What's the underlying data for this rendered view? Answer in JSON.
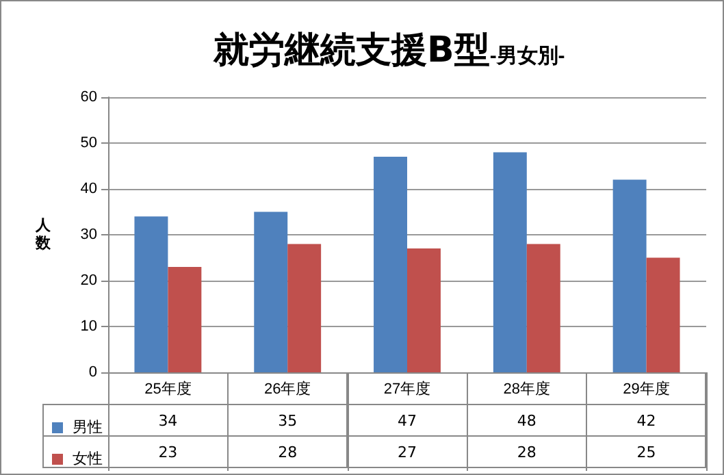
{
  "chart_data": {
    "type": "bar",
    "title": "就労継続支援B型",
    "subtitle": "-男女別-",
    "ylabel": "人数",
    "categories": [
      "25年度",
      "26年度",
      "27年度",
      "28年度",
      "29年度"
    ],
    "series": [
      {
        "name": "男性",
        "color": "#4f81bd",
        "values": [
          34,
          35,
          47,
          48,
          42
        ]
      },
      {
        "name": "女性",
        "color": "#c0504d",
        "values": [
          23,
          28,
          27,
          28,
          25
        ]
      }
    ],
    "ylim": [
      0,
      60
    ],
    "yticks": [
      0,
      10,
      20,
      30,
      40,
      50,
      60
    ],
    "grid": "y",
    "legend": "bottom",
    "data_labels": true
  }
}
